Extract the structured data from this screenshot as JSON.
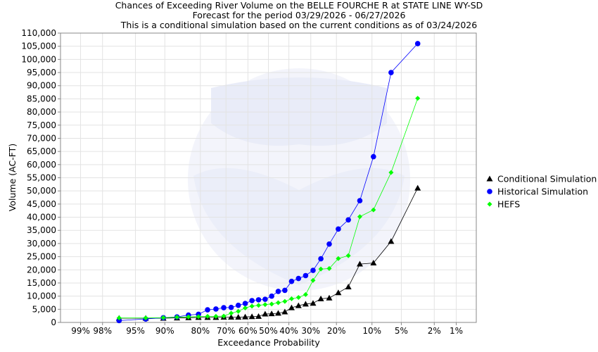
{
  "chart_data": {
    "type": "line",
    "title": "Chances of Exceeding River Volume on the BELLE FOURCHE R at STATE LINE WY-SD",
    "subtitle_1": "Forecast for the period 03/29/2026 - 06/27/2026",
    "subtitle_2": "This is a conditional simulation based on the current conditions as of 03/24/2026",
    "xlabel": "Exceedance Probability",
    "ylabel": "Volume (AC-FT)",
    "x_scale": "normal-probability",
    "x_ticks": [
      {
        "p": 99,
        "label": "99%"
      },
      {
        "p": 98,
        "label": "98%"
      },
      {
        "p": 95,
        "label": "95%"
      },
      {
        "p": 90,
        "label": "90%"
      },
      {
        "p": 80,
        "label": "80%"
      },
      {
        "p": 70,
        "label": "70%"
      },
      {
        "p": 60,
        "label": "60%"
      },
      {
        "p": 50,
        "label": "50%"
      },
      {
        "p": 40,
        "label": "40%"
      },
      {
        "p": 30,
        "label": "30%"
      },
      {
        "p": 20,
        "label": "20%"
      },
      {
        "p": 10,
        "label": "10%"
      },
      {
        "p": 5,
        "label": "5%"
      },
      {
        "p": 2,
        "label": "2%"
      },
      {
        "p": 1,
        "label": "1%"
      }
    ],
    "ylim": [
      0,
      110000
    ],
    "y_ticks": [
      {
        "v": 0,
        "label": "0"
      },
      {
        "v": 5000,
        "label": "5,000"
      },
      {
        "v": 10000,
        "label": "10,000"
      },
      {
        "v": 15000,
        "label": "15,000"
      },
      {
        "v": 20000,
        "label": "20,000"
      },
      {
        "v": 25000,
        "label": "25,000"
      },
      {
        "v": 30000,
        "label": "30,000"
      },
      {
        "v": 35000,
        "label": "35,000"
      },
      {
        "v": 40000,
        "label": "40,000"
      },
      {
        "v": 45000,
        "label": "45,000"
      },
      {
        "v": 50000,
        "label": "50,000"
      },
      {
        "v": 55000,
        "label": "55,000"
      },
      {
        "v": 60000,
        "label": "60,000"
      },
      {
        "v": 65000,
        "label": "65,000"
      },
      {
        "v": 70000,
        "label": "70,000"
      },
      {
        "v": 75000,
        "label": "75,000"
      },
      {
        "v": 80000,
        "label": "80,000"
      },
      {
        "v": 85000,
        "label": "85,000"
      },
      {
        "v": 90000,
        "label": "90,000"
      },
      {
        "v": 95000,
        "label": "95,000"
      },
      {
        "v": 100000,
        "label": "100,000"
      },
      {
        "v": 105000,
        "label": "105,000"
      },
      {
        "v": 110000,
        "label": "110,000"
      }
    ],
    "grid": true,
    "legend_position": "right",
    "x": [
      96.77,
      93.55,
      90.32,
      87.1,
      83.87,
      80.65,
      77.42,
      74.19,
      70.97,
      67.74,
      64.52,
      61.29,
      58.06,
      54.84,
      51.61,
      48.39,
      45.16,
      41.94,
      38.71,
      35.48,
      32.26,
      29.03,
      25.81,
      22.58,
      19.35,
      16.13,
      12.9,
      9.68,
      6.45,
      3.23
    ],
    "series": [
      {
        "name": "Conditional Simulation",
        "color": "#000000",
        "marker": "triangle",
        "values": [
          1600,
          1600,
          1600,
          1700,
          1800,
          1900,
          1900,
          1900,
          2000,
          2000,
          2000,
          2100,
          2200,
          2300,
          3200,
          3300,
          3500,
          4000,
          5600,
          6400,
          7000,
          7300,
          9000,
          9300,
          11300,
          13500,
          22200,
          22600,
          30800,
          51100
        ]
      },
      {
        "name": "Historical Simulation",
        "color": "#0000ff",
        "marker": "circle",
        "values": [
          700,
          1300,
          1800,
          2100,
          2800,
          3100,
          4800,
          5100,
          5600,
          5700,
          6500,
          7200,
          8300,
          8600,
          8800,
          10000,
          11800,
          12200,
          15600,
          16700,
          17800,
          19800,
          24200,
          29800,
          35500,
          39000,
          46300,
          63000,
          95000,
          106000
        ]
      },
      {
        "name": "HEFS",
        "color": "#00ff00",
        "marker": "diamond",
        "values": [
          1700,
          1700,
          1800,
          2000,
          2100,
          2200,
          2300,
          2300,
          2400,
          3500,
          4200,
          5500,
          6200,
          6500,
          6800,
          7000,
          7500,
          8000,
          9000,
          9500,
          10600,
          16000,
          20300,
          20500,
          24300,
          25400,
          40200,
          42800,
          57000,
          85200
        ]
      }
    ]
  }
}
